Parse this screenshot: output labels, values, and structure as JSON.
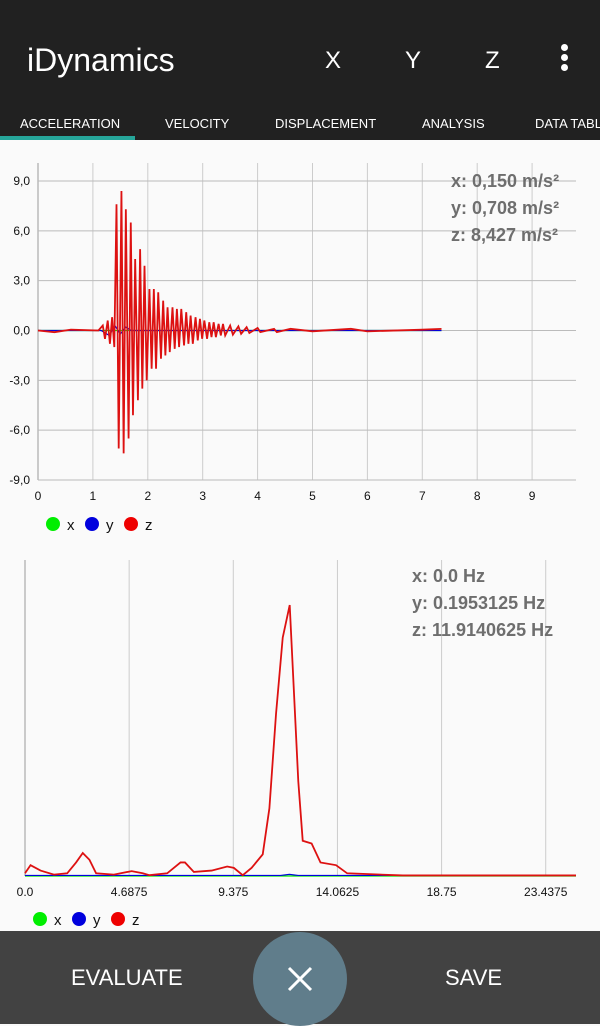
{
  "app": {
    "title": "iDynamics",
    "axis_buttons": [
      "X",
      "Y",
      "Z"
    ],
    "menu_icon": "more-vert-icon"
  },
  "tabs": [
    {
      "label": "ACCELERATION",
      "active": true
    },
    {
      "label": "VELOCITY"
    },
    {
      "label": "DISPLACEMENT"
    },
    {
      "label": "ANALYSIS"
    },
    {
      "label": "DATA TABLE"
    }
  ],
  "accent": "#26a69a",
  "colors": {
    "x": "#00ee00",
    "y": "#0000dd",
    "z": "#ee0000"
  },
  "chart_data": [
    {
      "type": "line",
      "xlim": [
        0,
        9.8
      ],
      "ylim": [
        -9,
        9
      ],
      "grid": true,
      "x_ticks": [
        "0",
        "1",
        "2",
        "3",
        "4",
        "5",
        "6",
        "7",
        "8",
        "9"
      ],
      "y_ticks": [
        "9,0",
        "6,0",
        "3,0",
        "0,0",
        "-3,0",
        "-6,0",
        "-9,0"
      ],
      "readout": [
        "x: 0,150 m/s²",
        "y: 0,708 m/s²",
        "z: 8,427 m/s²"
      ],
      "legend": [
        "x",
        "y",
        "z"
      ],
      "legend_placement": "bottom-left",
      "series": [
        {
          "name": "x",
          "t": [
            0,
            7.35
          ],
          "v": [
            0,
            0
          ]
        },
        {
          "name": "y",
          "t": [
            0,
            1.15,
            1.3,
            1.4,
            1.5,
            1.6,
            1.7,
            7.35
          ],
          "v": [
            0,
            0,
            -0.3,
            0.3,
            -0.2,
            0.2,
            0,
            0
          ]
        },
        {
          "name": "z",
          "t": [
            0,
            0.3,
            0.6,
            1.1,
            1.18,
            1.22,
            1.27,
            1.31,
            1.35,
            1.39,
            1.43,
            1.47,
            1.52,
            1.56,
            1.6,
            1.65,
            1.69,
            1.73,
            1.77,
            1.82,
            1.86,
            1.9,
            1.94,
            1.98,
            2.03,
            2.07,
            2.11,
            2.15,
            2.19,
            2.24,
            2.28,
            2.32,
            2.36,
            2.4,
            2.45,
            2.49,
            2.53,
            2.57,
            2.61,
            2.66,
            2.7,
            2.74,
            2.78,
            2.82,
            2.87,
            2.91,
            2.95,
            2.99,
            3.03,
            3.08,
            3.12,
            3.16,
            3.2,
            3.24,
            3.29,
            3.33,
            3.37,
            3.41,
            3.5,
            3.55,
            3.65,
            3.7,
            3.8,
            3.85,
            4.0,
            4.05,
            4.3,
            4.35,
            4.6,
            5.0,
            5.7,
            6.0,
            7.0,
            7.35
          ],
          "v": [
            0,
            -0.1,
            0.05,
            0,
            0.3,
            -0.5,
            0.6,
            -0.8,
            0.8,
            -1.0,
            7.6,
            -7.1,
            8.4,
            -7.4,
            7.3,
            -6.5,
            6.5,
            -5.1,
            4.3,
            -4.2,
            4.9,
            -3.5,
            3.9,
            -3.0,
            2.5,
            -2.3,
            2.5,
            -2.3,
            2.3,
            -1.7,
            1.8,
            -1.5,
            1.4,
            -1.3,
            1.4,
            -1.1,
            1.3,
            -1.0,
            1.3,
            -0.9,
            1.1,
            -0.8,
            0.9,
            -0.8,
            0.8,
            -0.6,
            0.7,
            -0.5,
            0.6,
            -0.5,
            0.5,
            -0.4,
            0.5,
            -0.4,
            0.4,
            -0.3,
            0.4,
            -0.3,
            0.3,
            -0.25,
            0.25,
            -0.2,
            0.2,
            -0.15,
            0.15,
            -0.1,
            0.1,
            -0.1,
            0.1,
            -0.05,
            0.1,
            -0.05,
            0.05,
            0.1
          ]
        }
      ]
    },
    {
      "type": "line",
      "xlim": [
        0,
        24.8
      ],
      "ylim": [
        0,
        1.1
      ],
      "grid": true,
      "x_ticks": [
        "0.0",
        "4.6875",
        "9.375",
        "14.0625",
        "18.75",
        "23.4375"
      ],
      "readout": [
        "x: 0.0 Hz",
        "y: 0.1953125 Hz",
        "z: 11.9140625 Hz"
      ],
      "legend": [
        "x",
        "y",
        "z"
      ],
      "legend_placement": "bottom-left",
      "series": [
        {
          "name": "x",
          "f": [
            0,
            24.8
          ],
          "v": [
            0,
            0
          ]
        },
        {
          "name": "y",
          "f": [
            0,
            11.5,
            11.9,
            12.3,
            24.8
          ],
          "v": [
            0.002,
            0.002,
            0.006,
            0.002,
            0.002
          ]
        },
        {
          "name": "z",
          "f": [
            0,
            0.25,
            0.7,
            1.3,
            1.9,
            2.3,
            2.6,
            2.9,
            3.2,
            4.0,
            4.8,
            5.3,
            5.6,
            6.4,
            7.0,
            7.2,
            7.6,
            8.4,
            9.1,
            9.4,
            9.8,
            10.2,
            10.7,
            11.0,
            11.3,
            11.6,
            11.914,
            12.3,
            12.5,
            12.9,
            13.3,
            14.0,
            14.5,
            17,
            24.8
          ],
          "v": [
            0.01,
            0.04,
            0.02,
            0.005,
            0.01,
            0.05,
            0.085,
            0.06,
            0.01,
            0.005,
            0.018,
            0.01,
            0.003,
            0.01,
            0.05,
            0.05,
            0.015,
            0.02,
            0.035,
            0.03,
            0.003,
            0.03,
            0.08,
            0.25,
            0.6,
            0.88,
            1.0,
            0.35,
            0.13,
            0.12,
            0.05,
            0.04,
            0.01,
            0.002,
            0.002
          ]
        }
      ]
    }
  ],
  "bottom": {
    "evaluate": "EVALUATE",
    "save": "SAVE",
    "fab_icon": "close-icon"
  }
}
